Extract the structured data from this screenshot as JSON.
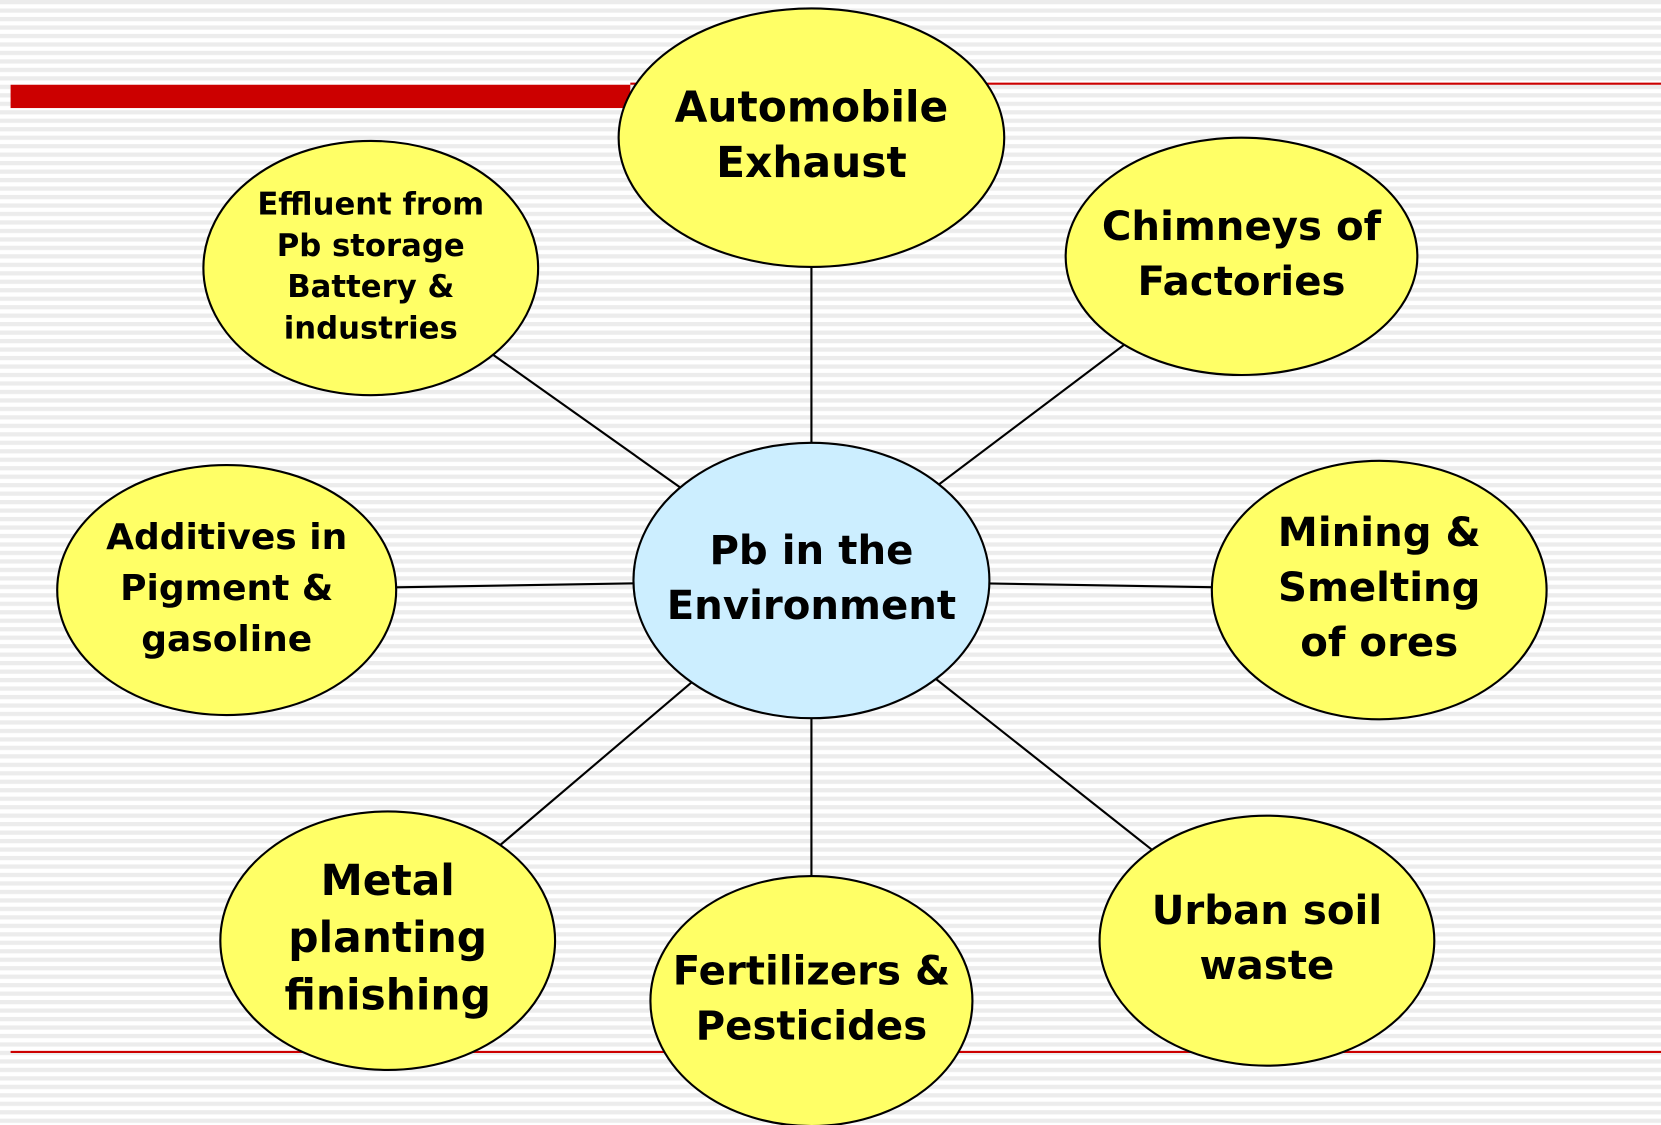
{
  "center": {
    "lines": [
      "Pb in the",
      "Environment"
    ]
  },
  "nodes": [
    {
      "lines": [
        "Automobile",
        "Exhaust"
      ]
    },
    {
      "lines": [
        "Chimneys of",
        "Factories"
      ]
    },
    {
      "lines": [
        "Mining &",
        "Smelting",
        "of ores"
      ]
    },
    {
      "lines": [
        "Urban soil",
        "waste"
      ]
    },
    {
      "lines": [
        "Fertilizers &",
        "Pesticides"
      ]
    },
    {
      "lines": [
        "Metal",
        "planting",
        "finishing"
      ]
    },
    {
      "lines": [
        "Additives in",
        "Pigment &",
        "gasoline"
      ]
    },
    {
      "lines": [
        "Effluent from",
        "Pb storage",
        "Battery &",
        "industries"
      ]
    }
  ]
}
